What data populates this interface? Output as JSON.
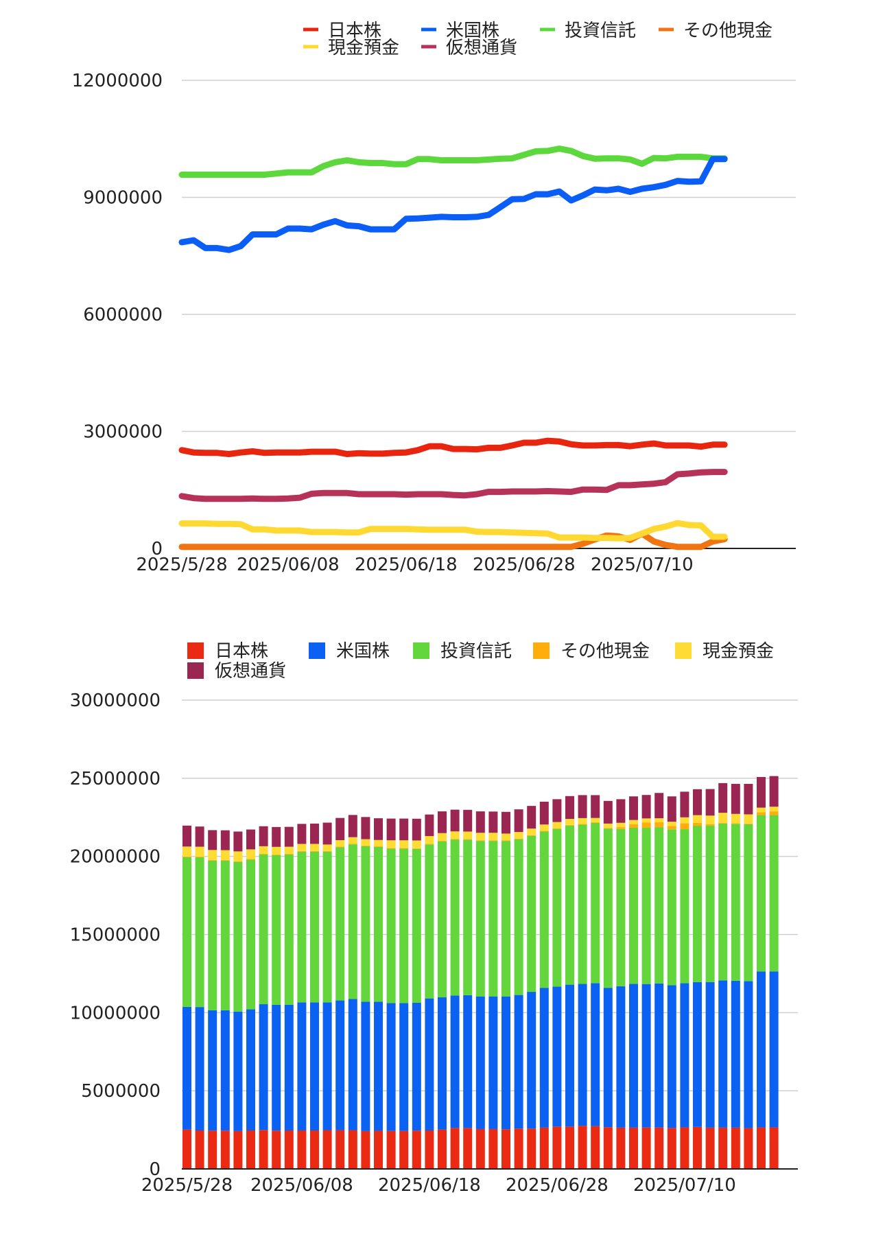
{
  "chart_data": [
    {
      "type": "line",
      "legend": [
        "日本株",
        "米国株",
        "投資信託",
        "その他現金",
        "現金預金",
        "仮想通貨"
      ],
      "legend_position": "top-right",
      "x_tick_labels": [
        "2025/5/28",
        "2025/06/08",
        "2025/06/18",
        "2025/06/28",
        "2025/07/10"
      ],
      "x_tick_index": [
        0,
        9,
        19,
        29,
        39
      ],
      "y_tick_labels": [
        "0",
        "3000000",
        "6000000",
        "9000000",
        "12000000"
      ],
      "ylim": [
        0,
        12000000
      ],
      "grid": true,
      "series": [
        {
          "name": "日本株",
          "color": "#e8260f",
          "values": [
            2520000,
            2460000,
            2450000,
            2450000,
            2420000,
            2460000,
            2490000,
            2450000,
            2460000,
            2460000,
            2460000,
            2480000,
            2480000,
            2480000,
            2420000,
            2440000,
            2430000,
            2430000,
            2450000,
            2460000,
            2520000,
            2620000,
            2620000,
            2550000,
            2550000,
            2540000,
            2580000,
            2580000,
            2640000,
            2710000,
            2710000,
            2760000,
            2740000,
            2670000,
            2640000,
            2640000,
            2650000,
            2650000,
            2620000,
            2660000,
            2690000,
            2640000,
            2640000,
            2640000,
            2610000,
            2660000,
            2660000
          ]
        },
        {
          "name": "米国株",
          "color": "#0a5ef5",
          "values": [
            7850000,
            7900000,
            7700000,
            7700000,
            7650000,
            7750000,
            8050000,
            8050000,
            8050000,
            8200000,
            8200000,
            8180000,
            8300000,
            8390000,
            8280000,
            8260000,
            8180000,
            8180000,
            8180000,
            8450000,
            8460000,
            8480000,
            8500000,
            8490000,
            8490000,
            8500000,
            8550000,
            8750000,
            8950000,
            8960000,
            9080000,
            9080000,
            9150000,
            8920000,
            9050000,
            9200000,
            9180000,
            9220000,
            9140000,
            9220000,
            9260000,
            9320000,
            9420000,
            9400000,
            9410000,
            9980000,
            9980000
          ]
        },
        {
          "name": "投資信託",
          "color": "#5dd83c",
          "values": [
            9580000,
            9580000,
            9580000,
            9580000,
            9580000,
            9580000,
            9580000,
            9580000,
            9610000,
            9640000,
            9640000,
            9640000,
            9800000,
            9900000,
            9950000,
            9900000,
            9880000,
            9880000,
            9850000,
            9850000,
            9980000,
            9980000,
            9950000,
            9950000,
            9950000,
            9950000,
            9970000,
            9990000,
            10000000,
            10090000,
            10180000,
            10190000,
            10250000,
            10190000,
            10060000,
            9990000,
            10000000,
            10000000,
            9970000,
            9860000,
            10010000,
            10000000,
            10040000,
            10040000,
            10040000,
            10000000,
            10000000
          ]
        },
        {
          "name": "その他現金",
          "color": "#f07412",
          "values": [
            40000,
            40000,
            40000,
            40000,
            40000,
            40000,
            40000,
            40000,
            40000,
            40000,
            40000,
            40000,
            40000,
            40000,
            40000,
            40000,
            40000,
            40000,
            40000,
            40000,
            40000,
            40000,
            40000,
            40000,
            40000,
            40000,
            40000,
            40000,
            40000,
            40000,
            40000,
            40000,
            40000,
            40000,
            120000,
            230000,
            330000,
            310000,
            220000,
            380000,
            180000,
            90000,
            40000,
            40000,
            40000,
            180000,
            240000
          ]
        },
        {
          "name": "現金預金",
          "color": "#ffd932",
          "values": [
            640000,
            640000,
            640000,
            630000,
            630000,
            620000,
            490000,
            490000,
            460000,
            460000,
            460000,
            420000,
            420000,
            420000,
            410000,
            410000,
            500000,
            500000,
            500000,
            500000,
            490000,
            480000,
            480000,
            480000,
            480000,
            430000,
            420000,
            420000,
            410000,
            400000,
            390000,
            380000,
            280000,
            280000,
            280000,
            270000,
            270000,
            260000,
            270000,
            380000,
            500000,
            560000,
            650000,
            600000,
            590000,
            300000,
            300000
          ]
        },
        {
          "name": "仮想通貨",
          "color": "#b63259",
          "values": [
            1340000,
            1290000,
            1270000,
            1270000,
            1270000,
            1270000,
            1280000,
            1270000,
            1270000,
            1280000,
            1300000,
            1400000,
            1420000,
            1420000,
            1420000,
            1390000,
            1390000,
            1390000,
            1390000,
            1380000,
            1390000,
            1390000,
            1390000,
            1370000,
            1360000,
            1390000,
            1450000,
            1450000,
            1460000,
            1460000,
            1460000,
            1470000,
            1460000,
            1450000,
            1510000,
            1510000,
            1500000,
            1620000,
            1620000,
            1640000,
            1660000,
            1700000,
            1900000,
            1920000,
            1950000,
            1960000,
            1960000
          ]
        }
      ]
    },
    {
      "type": "bar",
      "stacked": true,
      "legend": [
        "日本株",
        "米国株",
        "投資信託",
        "その他現金",
        "現金預金",
        "仮想通貨"
      ],
      "legend_position": "top",
      "x_tick_labels": [
        "2025/5/28",
        "2025/06/08",
        "2025/06/18",
        "2025/06/28",
        "2025/07/10"
      ],
      "x_tick_index": [
        0,
        9,
        19,
        29,
        39
      ],
      "y_tick_labels": [
        "0",
        "5000000",
        "10000000",
        "15000000",
        "20000000",
        "25000000",
        "30000000"
      ],
      "ylim": [
        0,
        30000000
      ],
      "grid": true,
      "series": [
        {
          "name": "日本株",
          "color": "#ea2a12",
          "values": [
            2520000,
            2460000,
            2450000,
            2450000,
            2420000,
            2460000,
            2490000,
            2450000,
            2460000,
            2460000,
            2460000,
            2480000,
            2480000,
            2480000,
            2420000,
            2440000,
            2430000,
            2430000,
            2450000,
            2460000,
            2520000,
            2620000,
            2620000,
            2550000,
            2550000,
            2540000,
            2580000,
            2580000,
            2640000,
            2710000,
            2710000,
            2760000,
            2740000,
            2670000,
            2640000,
            2640000,
            2650000,
            2650000,
            2620000,
            2660000,
            2690000,
            2640000,
            2640000,
            2640000,
            2610000,
            2660000,
            2660000
          ]
        },
        {
          "name": "米国株",
          "color": "#0a61f2",
          "values": [
            7850000,
            7900000,
            7700000,
            7700000,
            7650000,
            7750000,
            8050000,
            8050000,
            8050000,
            8200000,
            8200000,
            8180000,
            8300000,
            8390000,
            8280000,
            8260000,
            8180000,
            8180000,
            8180000,
            8450000,
            8460000,
            8480000,
            8500000,
            8490000,
            8490000,
            8500000,
            8550000,
            8750000,
            8950000,
            8960000,
            9080000,
            9080000,
            9150000,
            8920000,
            9050000,
            9200000,
            9180000,
            9220000,
            9140000,
            9220000,
            9260000,
            9320000,
            9420000,
            9400000,
            9410000,
            9980000,
            9980000
          ]
        },
        {
          "name": "投資信託",
          "color": "#62d63a",
          "values": [
            9580000,
            9580000,
            9580000,
            9580000,
            9580000,
            9580000,
            9580000,
            9580000,
            9610000,
            9640000,
            9640000,
            9640000,
            9800000,
            9900000,
            9950000,
            9900000,
            9880000,
            9880000,
            9850000,
            9850000,
            9980000,
            9980000,
            9950000,
            9950000,
            9950000,
            9950000,
            9970000,
            9990000,
            10000000,
            10090000,
            10180000,
            10190000,
            10250000,
            10190000,
            10060000,
            9990000,
            10000000,
            10000000,
            9970000,
            9860000,
            10010000,
            10000000,
            10040000,
            10040000,
            10040000,
            10000000,
            10000000
          ]
        },
        {
          "name": "その他現金",
          "color": "#ffad0c",
          "values": [
            40000,
            40000,
            40000,
            40000,
            40000,
            40000,
            40000,
            40000,
            40000,
            40000,
            40000,
            40000,
            40000,
            40000,
            40000,
            40000,
            40000,
            40000,
            40000,
            40000,
            40000,
            40000,
            40000,
            40000,
            40000,
            40000,
            40000,
            40000,
            40000,
            40000,
            40000,
            40000,
            40000,
            40000,
            120000,
            230000,
            330000,
            310000,
            220000,
            380000,
            180000,
            90000,
            40000,
            40000,
            40000,
            180000,
            240000
          ]
        },
        {
          "name": "現金預金",
          "color": "#ffdc34",
          "values": [
            640000,
            640000,
            640000,
            630000,
            630000,
            620000,
            490000,
            490000,
            460000,
            460000,
            460000,
            420000,
            420000,
            420000,
            410000,
            410000,
            500000,
            500000,
            500000,
            500000,
            490000,
            480000,
            480000,
            480000,
            480000,
            430000,
            420000,
            420000,
            410000,
            400000,
            390000,
            380000,
            280000,
            280000,
            280000,
            270000,
            270000,
            260000,
            270000,
            380000,
            500000,
            560000,
            650000,
            600000,
            590000,
            300000,
            300000
          ]
        },
        {
          "name": "仮想通貨",
          "color": "#9a2651",
          "values": [
            1340000,
            1290000,
            1270000,
            1270000,
            1270000,
            1270000,
            1280000,
            1270000,
            1270000,
            1280000,
            1300000,
            1400000,
            1420000,
            1420000,
            1420000,
            1390000,
            1390000,
            1390000,
            1390000,
            1380000,
            1390000,
            1390000,
            1390000,
            1370000,
            1360000,
            1390000,
            1450000,
            1450000,
            1460000,
            1460000,
            1460000,
            1470000,
            1460000,
            1450000,
            1510000,
            1510000,
            1500000,
            1620000,
            1620000,
            1640000,
            1660000,
            1700000,
            1900000,
            1920000,
            1950000,
            1960000,
            1960000
          ]
        }
      ]
    }
  ]
}
